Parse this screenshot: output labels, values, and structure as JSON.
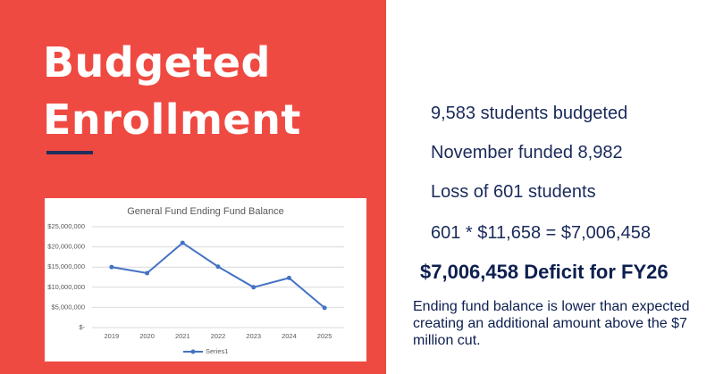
{
  "slide": {
    "title": "Budgeted Enrollment",
    "bullets": [
      "9,583 students budgeted",
      "November funded 8,982",
      "Loss of 601 students",
      "601 * $11,658 = $7,006,458"
    ],
    "deficit": "$7,006,458 Deficit for FY26",
    "note": "Ending fund balance is lower than expected creating an additional amount above the $7 million cut."
  },
  "chart_data": {
    "type": "line",
    "title": "General Fund Ending Fund Balance",
    "categories": [
      "2019",
      "2020",
      "2021",
      "2022",
      "2023",
      "2024",
      "2025"
    ],
    "series": [
      {
        "name": "Series1",
        "color": "#4472c4",
        "values": [
          15000000,
          13500000,
          21000000,
          15100000,
          10000000,
          12300000,
          4900000
        ]
      }
    ],
    "ylim": [
      0,
      25000000
    ],
    "yticks": [
      {
        "value": 0,
        "label": "$-"
      },
      {
        "value": 5000000,
        "label": "$5,000,000"
      },
      {
        "value": 10000000,
        "label": "$10,000,000"
      },
      {
        "value": 15000000,
        "label": "$15,000,000"
      },
      {
        "value": 20000000,
        "label": "$20,000,000"
      },
      {
        "value": 25000000,
        "label": "$25,000,000"
      }
    ],
    "grid": true,
    "legend": "bottom"
  }
}
